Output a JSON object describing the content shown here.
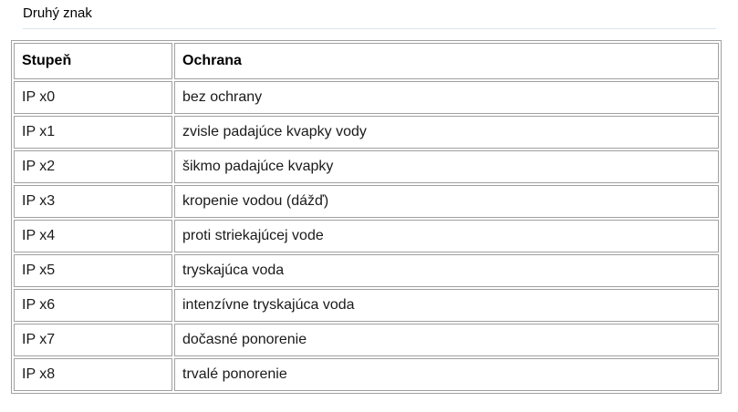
{
  "page": {
    "title": "Druhý znak"
  },
  "colors": {
    "background": "#ffffff",
    "text": "#1a1a1a",
    "table_border": "#a0a0a0",
    "title_rule": "#dbe5ea"
  },
  "table": {
    "headers": [
      "Stupeň",
      "Ochrana"
    ],
    "rows": [
      [
        "IP x0",
        "bez ochrany"
      ],
      [
        "IP x1",
        "zvisle padajúce kvapky vody"
      ],
      [
        "IP x2",
        "šikmo padajúce kvapky"
      ],
      [
        "IP x3",
        "kropenie vodou (dážď)"
      ],
      [
        "IP x4",
        "proti striekajúcej vode"
      ],
      [
        "IP x5",
        "tryskajúca voda"
      ],
      [
        "IP x6",
        "intenzívne tryskajúca voda"
      ],
      [
        "IP x7",
        "dočasné ponorenie"
      ],
      [
        "IP x8",
        "trvalé ponorenie"
      ]
    ]
  }
}
